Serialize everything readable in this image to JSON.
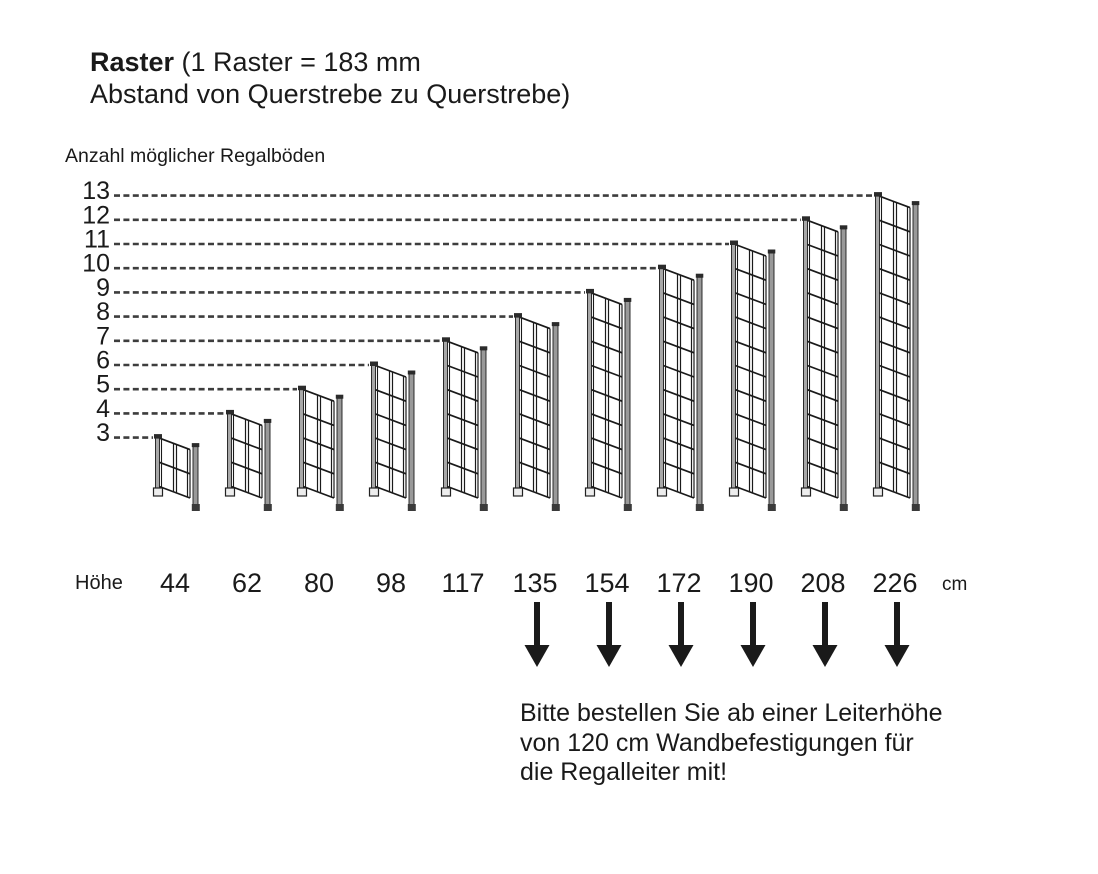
{
  "title": {
    "bold": "Raster",
    "rest": " (1 Raster = 183 mm",
    "line2": "Abstand von Querstrebe zu Querstrebe)"
  },
  "chart_data": {
    "type": "bar",
    "title": "Raster (1 Raster = 183 mm Abstand von Querstrebe zu Querstrebe)",
    "raster_mm": 183,
    "y_axis_label": "Anzahl möglicher Regalböden",
    "y_ticks": [
      13,
      12,
      11,
      10,
      9,
      8,
      7,
      6,
      5,
      4,
      3
    ],
    "x_axis_prefix": "Höhe",
    "x_axis_unit": "cm",
    "categories": [
      "44",
      "62",
      "80",
      "98",
      "117",
      "135",
      "154",
      "172",
      "190",
      "208",
      "226"
    ],
    "values": [
      3,
      4,
      5,
      6,
      7,
      8,
      9,
      10,
      11,
      12,
      13
    ],
    "ladders": [
      {
        "height_cm": "44",
        "shelves": 3,
        "wall_mount_arrow": false
      },
      {
        "height_cm": "62",
        "shelves": 4,
        "wall_mount_arrow": false
      },
      {
        "height_cm": "80",
        "shelves": 5,
        "wall_mount_arrow": false
      },
      {
        "height_cm": "98",
        "shelves": 6,
        "wall_mount_arrow": false
      },
      {
        "height_cm": "117",
        "shelves": 7,
        "wall_mount_arrow": false
      },
      {
        "height_cm": "135",
        "shelves": 8,
        "wall_mount_arrow": true
      },
      {
        "height_cm": "154",
        "shelves": 9,
        "wall_mount_arrow": true
      },
      {
        "height_cm": "172",
        "shelves": 10,
        "wall_mount_arrow": true
      },
      {
        "height_cm": "190",
        "shelves": 11,
        "wall_mount_arrow": true
      },
      {
        "height_cm": "208",
        "shelves": 12,
        "wall_mount_arrow": true
      },
      {
        "height_cm": "226",
        "shelves": 13,
        "wall_mount_arrow": true
      }
    ],
    "note_lines": [
      "Bitte bestellen Sie ab einer Leiterhöhe",
      "von 120 cm Wandbefestigungen für",
      "die Regalleiter mit!"
    ]
  },
  "colors": {
    "ink": "#1a1a1a",
    "dash": "#3d3d3d",
    "post_fill": "#a8a8a8",
    "right_post_fill": "#999999",
    "cap_fill": "#2b2b2b",
    "foot_dark": "#3a3a3a",
    "foot_light": "#ededed",
    "background": "#ffffff"
  }
}
